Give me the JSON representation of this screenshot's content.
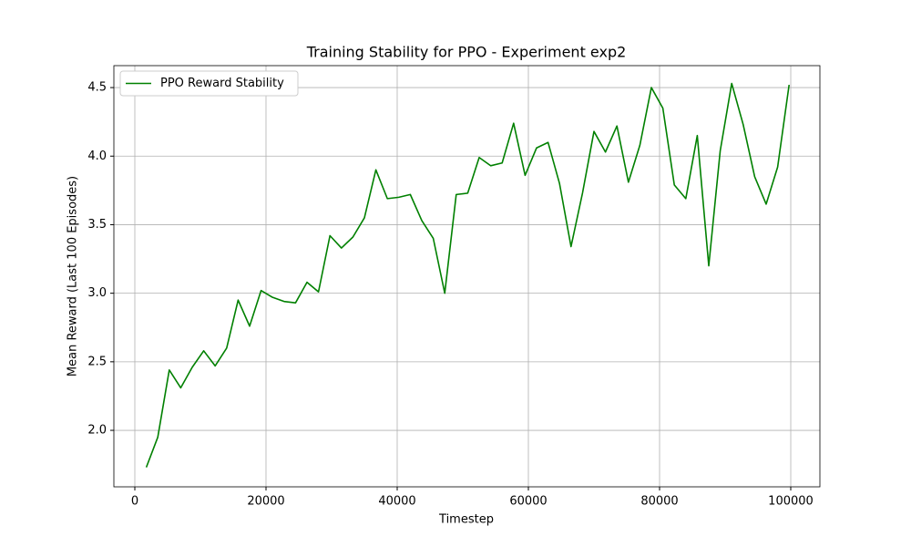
{
  "chart_data": {
    "type": "line",
    "title": "Training Stability for PPO - Experiment exp2",
    "x_label": "Timestep",
    "y_label": "Mean Reward (Last 100 Episodes)",
    "x": [
      1750,
      3500,
      5250,
      7000,
      8750,
      10500,
      12250,
      14000,
      15750,
      17500,
      19250,
      21000,
      22750,
      24500,
      26250,
      28000,
      29750,
      31500,
      33250,
      35000,
      36750,
      38500,
      40250,
      42000,
      43750,
      45500,
      47250,
      49000,
      50750,
      52500,
      54250,
      56000,
      57750,
      59500,
      61250,
      63000,
      64750,
      66500,
      68250,
      70000,
      71750,
      73500,
      75250,
      77000,
      78750,
      80500,
      82250,
      84000,
      85750,
      87500,
      89250,
      91000,
      92750,
      94500,
      96250,
      98000,
      99750
    ],
    "series": [
      {
        "name": "PPO Reward Stability",
        "color": "#008000",
        "values": [
          1.73,
          1.95,
          2.44,
          2.31,
          2.46,
          2.58,
          2.47,
          2.6,
          2.95,
          2.76,
          3.02,
          2.97,
          2.94,
          2.93,
          3.08,
          3.01,
          3.42,
          3.33,
          3.41,
          3.55,
          3.9,
          3.69,
          3.7,
          3.72,
          3.53,
          3.4,
          3.0,
          3.72,
          3.73,
          3.99,
          3.93,
          3.95,
          4.24,
          3.86,
          4.06,
          4.1,
          3.8,
          3.34,
          3.73,
          4.18,
          4.03,
          4.22,
          3.81,
          4.08,
          4.5,
          4.35,
          3.79,
          3.69,
          4.15,
          3.2,
          4.04,
          4.53,
          4.23,
          3.85,
          3.65,
          3.92,
          4.52
        ]
      }
    ],
    "xlim": [
      -3194,
      104444
    ],
    "xticks": [
      0,
      20000,
      40000,
      60000,
      80000,
      100000
    ],
    "ylim": [
      1.588,
      4.66
    ],
    "yticks": [
      {
        "value": 2,
        "label": "2.0"
      },
      2.5,
      {
        "value": 3,
        "label": "3.0"
      },
      3.5,
      {
        "value": 4,
        "label": "4.0"
      },
      4.5
    ],
    "grid": true,
    "legend": "upper left"
  }
}
